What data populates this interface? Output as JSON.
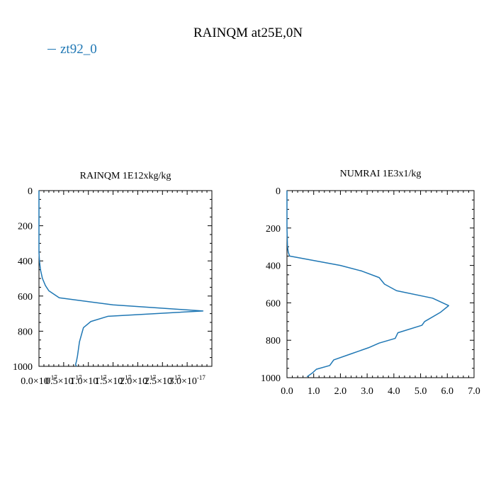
{
  "figure": {
    "title": "RAINQM at25E,0N",
    "legend": {
      "label": "zt92_0",
      "color": "#1f77b4"
    }
  },
  "chart_data": [
    {
      "type": "line",
      "title": "RAINQM  1E12xkg/kg",
      "xlabel": "",
      "ylabel": "",
      "xlim": [
        0.0,
        3.5e-17
      ],
      "ylim": [
        1000,
        0
      ],
      "y_inverted": true,
      "grid": false,
      "xticks": [
        0.0,
        5e-18,
        1e-17,
        1.5e-17,
        2e-17,
        2.5e-17,
        3e-17
      ],
      "xtick_labels": [
        {
          "base": "0.0×10",
          "exp": "-17"
        },
        {
          "base": "0.5×10",
          "exp": "-17"
        },
        {
          "base": "1.0×10",
          "exp": "-17"
        },
        {
          "base": "1.5×10",
          "exp": "-17"
        },
        {
          "base": "2.0×10",
          "exp": "-17"
        },
        {
          "base": "2.5×10",
          "exp": "-17"
        },
        {
          "base": "3.0×10",
          "exp": "-17"
        }
      ],
      "yticks": [
        0,
        200,
        400,
        600,
        800,
        1000
      ],
      "ytick_labels": [
        "0",
        "200",
        "400",
        "600",
        "800",
        "1000"
      ],
      "series": [
        {
          "name": "zt92_0",
          "color": "#1f77b4",
          "x": [
            0.0,
            0.0,
            0.0,
            0.0,
            0.0,
            1e-19,
            3e-19,
            7e-19,
            1.3e-18,
            2e-18,
            4.1e-18,
            1.5e-17,
            3.32e-17,
            1.4e-17,
            1.05e-17,
            9e-18,
            8.6e-18,
            8.2e-18,
            8e-18,
            7.8e-18,
            7.6e-18,
            7.4e-18,
            7.6e-18
          ],
          "y": [
            0,
            100,
            200,
            300,
            350,
            400,
            450,
            500,
            540,
            570,
            610,
            650,
            685,
            715,
            745,
            780,
            820,
            860,
            900,
            940,
            970,
            990,
            1000
          ]
        }
      ]
    },
    {
      "type": "line",
      "title": "NUMRAI  1E3x1/kg",
      "xlabel": "",
      "ylabel": "",
      "xlim": [
        0.0,
        7.0
      ],
      "ylim": [
        1000,
        0
      ],
      "y_inverted": true,
      "grid": false,
      "xticks": [
        0.0,
        1.0,
        2.0,
        3.0,
        4.0,
        5.0,
        6.0,
        7.0
      ],
      "xtick_labels": [
        "0.0",
        "1.0",
        "2.0",
        "3.0",
        "4.0",
        "5.0",
        "6.0",
        "7.0"
      ],
      "yticks": [
        0,
        200,
        400,
        600,
        800,
        1000
      ],
      "ytick_labels": [
        "0",
        "200",
        "400",
        "600",
        "800",
        "1000"
      ],
      "series": [
        {
          "name": "zt92_0",
          "color": "#1f77b4",
          "x": [
            0.0,
            0.0,
            0.02,
            0.05,
            0.1,
            2.0,
            2.8,
            3.45,
            3.65,
            4.1,
            5.45,
            6.05,
            5.75,
            5.15,
            5.05,
            4.15,
            4.05,
            3.45,
            3.05,
            2.35,
            1.75,
            1.6,
            1.1,
            0.95,
            0.75
          ],
          "y": [
            0,
            200,
            300,
            330,
            350,
            400,
            430,
            465,
            500,
            535,
            575,
            615,
            650,
            700,
            720,
            760,
            790,
            815,
            840,
            875,
            905,
            935,
            955,
            975,
            995
          ]
        }
      ]
    }
  ]
}
